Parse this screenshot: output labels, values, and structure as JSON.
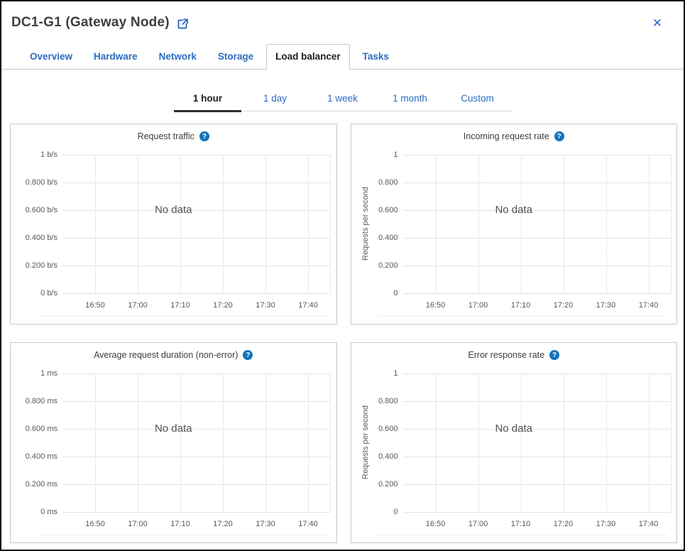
{
  "header": {
    "title": "DC1-G1 (Gateway Node)",
    "close_icon": "✕"
  },
  "tabs": [
    {
      "label": "Overview"
    },
    {
      "label": "Hardware"
    },
    {
      "label": "Network"
    },
    {
      "label": "Storage"
    },
    {
      "label": "Load balancer"
    },
    {
      "label": "Tasks"
    }
  ],
  "active_tab": "Load balancer",
  "time_range": {
    "active": "1 hour",
    "options": [
      {
        "label": "1 hour"
      },
      {
        "label": "1 day"
      },
      {
        "label": "1 week"
      },
      {
        "label": "1 month"
      },
      {
        "label": "Custom"
      }
    ]
  },
  "charts": [
    {
      "title": "Request traffic",
      "help_icon": "?",
      "no_data": "No data",
      "y_axis_label": null,
      "yticks": [
        "1 b/s",
        "0.800 b/s",
        "0.600 b/s",
        "0.400 b/s",
        "0.200 b/s",
        "0 b/s"
      ],
      "xticks": [
        "16:50",
        "17:00",
        "17:10",
        "17:20",
        "17:30",
        "17:40"
      ]
    },
    {
      "title": "Incoming request rate",
      "help_icon": "?",
      "no_data": "No data",
      "y_axis_label": "Requests per second",
      "yticks": [
        "1",
        "0.800",
        "0.600",
        "0.400",
        "0.200",
        "0"
      ],
      "xticks": [
        "16:50",
        "17:00",
        "17:10",
        "17:20",
        "17:30",
        "17:40"
      ]
    },
    {
      "title": "Average request duration (non-error)",
      "help_icon": "?",
      "no_data": "No data",
      "y_axis_label": null,
      "yticks": [
        "1 ms",
        "0.800 ms",
        "0.600 ms",
        "0.400 ms",
        "0.200 ms",
        "0 ms"
      ],
      "xticks": [
        "16:50",
        "17:00",
        "17:10",
        "17:20",
        "17:30",
        "17:40"
      ]
    },
    {
      "title": "Error response rate",
      "help_icon": "?",
      "no_data": "No data",
      "y_axis_label": "Requests per second",
      "yticks": [
        "1",
        "0.800",
        "0.600",
        "0.400",
        "0.200",
        "0"
      ],
      "xticks": [
        "16:50",
        "17:00",
        "17:10",
        "17:20",
        "17:30",
        "17:40"
      ]
    }
  ],
  "colors": {
    "link_blue": "#2b6cbf",
    "help_icon_bg": "#1173bc",
    "active_text": "#1f1f1f",
    "gridline": "#e6e6e6",
    "axis_text": "#58585a"
  }
}
